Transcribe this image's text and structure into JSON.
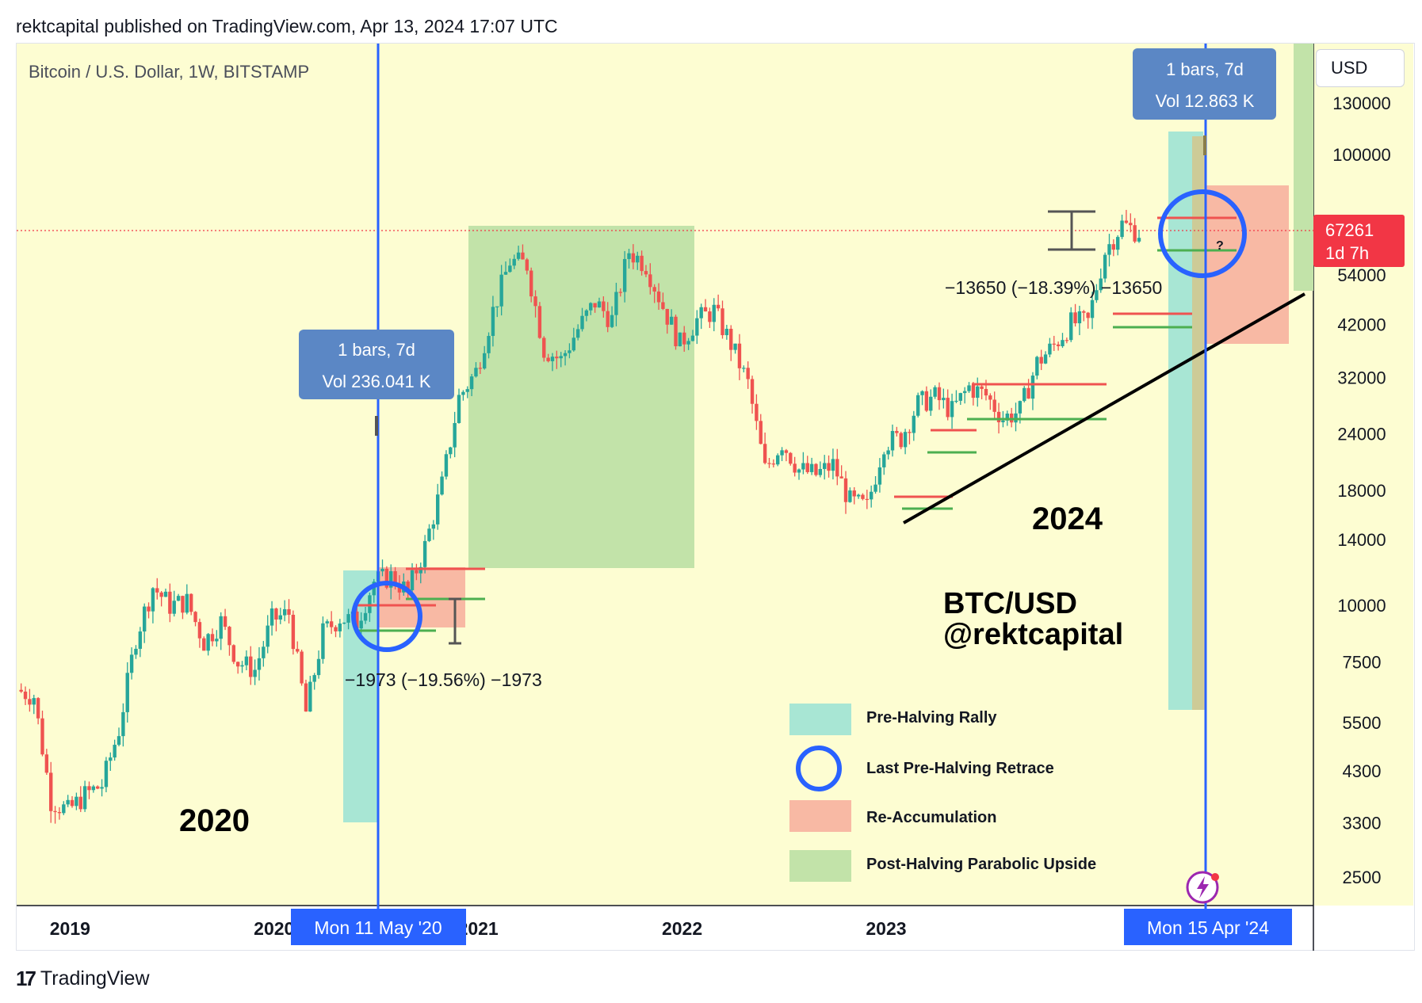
{
  "header": {
    "published": "rektcapital published on TradingView.com, Apr 13, 2024 17:07 UTC",
    "symbol": "Bitcoin / U.S. Dollar, 1W, BITSTAMP",
    "currency": "USD"
  },
  "footer": {
    "brand": "TradingView",
    "brand_mark": "17"
  },
  "colors": {
    "background": "#fdfdd2",
    "up": "#26a69a",
    "down": "#ef5350",
    "pre_halving": "#a8e6d4",
    "reaccum": "#f8b9a4",
    "post_halving": "#c2e3a9",
    "halving_line": "#2962ff",
    "price_tag": "#f23645",
    "info_box": "#5b87c5"
  },
  "chart_data": {
    "type": "candlestick",
    "timeframe": "1W",
    "y_scale": "log",
    "y_ticks": [
      2500,
      3300,
      4300,
      5500,
      7500,
      10000,
      14000,
      18000,
      24000,
      32000,
      42000,
      54000,
      100000,
      130000
    ],
    "x_ticks": [
      "2019",
      "2020",
      "2021",
      "2022",
      "2023"
    ],
    "last_price": {
      "value": "67261",
      "countdown": "1d 7h"
    },
    "approx_weekly_closes": [
      [
        "2018-10",
        6500
      ],
      [
        "2018-11",
        6300
      ],
      [
        "2018-12",
        3700
      ],
      [
        "2019-01",
        3500
      ],
      [
        "2019-02",
        3800
      ],
      [
        "2019-03",
        4000
      ],
      [
        "2019-04",
        5300
      ],
      [
        "2019-05",
        8500
      ],
      [
        "2019-06",
        11000
      ],
      [
        "2019-07",
        10000
      ],
      [
        "2019-08",
        10200
      ],
      [
        "2019-09",
        8300
      ],
      [
        "2019-10",
        9200
      ],
      [
        "2019-11",
        7500
      ],
      [
        "2019-12",
        7200
      ],
      [
        "2020-01",
        9300
      ],
      [
        "2020-02",
        9600
      ],
      [
        "2020-03",
        5800
      ],
      [
        "2020-04",
        8700
      ],
      [
        "2020-05",
        9400
      ],
      [
        "2020-06",
        9200
      ],
      [
        "2020-07",
        11300
      ],
      [
        "2020-08",
        11600
      ],
      [
        "2020-09",
        10700
      ],
      [
        "2020-10",
        13500
      ],
      [
        "2020-11",
        18500
      ],
      [
        "2020-12",
        28900
      ],
      [
        "2021-01",
        33000
      ],
      [
        "2021-02",
        45000
      ],
      [
        "2021-03",
        58000
      ],
      [
        "2021-04",
        57000
      ],
      [
        "2021-05",
        37000
      ],
      [
        "2021-06",
        35000
      ],
      [
        "2021-07",
        41000
      ],
      [
        "2021-08",
        47000
      ],
      [
        "2021-09",
        43000
      ],
      [
        "2021-10",
        61000
      ],
      [
        "2021-11",
        57000
      ],
      [
        "2021-12",
        46000
      ],
      [
        "2022-01",
        38000
      ],
      [
        "2022-02",
        43000
      ],
      [
        "2022-03",
        45000
      ],
      [
        "2022-04",
        38000
      ],
      [
        "2022-05",
        31000
      ],
      [
        "2022-06",
        20000
      ],
      [
        "2022-07",
        23000
      ],
      [
        "2022-08",
        20000
      ],
      [
        "2022-09",
        19500
      ],
      [
        "2022-10",
        20500
      ],
      [
        "2022-11",
        17000
      ],
      [
        "2022-12",
        16500
      ],
      [
        "2023-01",
        23000
      ],
      [
        "2023-02",
        23500
      ],
      [
        "2023-03",
        28000
      ],
      [
        "2023-04",
        29000
      ],
      [
        "2023-05",
        27000
      ],
      [
        "2023-06",
        30500
      ],
      [
        "2023-07",
        29200
      ],
      [
        "2023-08",
        26000
      ],
      [
        "2023-09",
        27000
      ],
      [
        "2023-10",
        34500
      ],
      [
        "2023-11",
        37700
      ],
      [
        "2023-12",
        42300
      ],
      [
        "2024-01",
        42500
      ],
      [
        "2024-02",
        61000
      ],
      [
        "2024-03",
        70000
      ],
      [
        "2024-04",
        67261
      ]
    ],
    "halvings": [
      {
        "date_label": "Mon 11 May '20",
        "info_bars": "1 bars, 7d",
        "info_vol": "Vol 236.041 K"
      },
      {
        "date_label": "Mon 15 Apr '24",
        "info_bars": "1 bars, 7d",
        "info_vol": "Vol 12.863 K"
      }
    ],
    "measurements": [
      {
        "label": "−1973 (−19.56%) −1973"
      },
      {
        "label": "−13650 (−18.39%) −13650"
      }
    ],
    "annotations": {
      "year_2020": "2020",
      "year_2024": "2024",
      "pair": "BTC/USD",
      "handle": "@rektcapital",
      "question": "?"
    },
    "legend": [
      {
        "key": "pre-halving",
        "label": "Pre-Halving Rally"
      },
      {
        "key": "circle",
        "label": "Last Pre-Halving Retrace"
      },
      {
        "key": "reaccum",
        "label": "Re-Accumulation"
      },
      {
        "key": "post-halving",
        "label": "Post-Halving Parabolic Upside"
      }
    ],
    "grid": false
  }
}
